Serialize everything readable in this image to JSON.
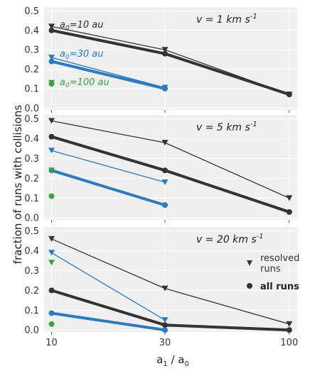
{
  "figure": {
    "ylabel": "fraction of runs with collisions",
    "xlabel_main": "a",
    "xlabel_sub1": "1",
    "xlabel_mid": " / a",
    "xlabel_sub2": "0",
    "legend": {
      "resolved_line1": "resolved",
      "resolved_line2": "runs",
      "all": "all runs"
    }
  },
  "colors": {
    "a10": "#333333",
    "a30": "#2b7bbf",
    "a100": "#3aa33a",
    "panel_bg": "#efefef",
    "grid": "#ffffff"
  },
  "chart_data": [
    {
      "type": "line",
      "title": "",
      "annotation": {
        "v_prefix": "v = ",
        "v_value": "1 km s",
        "v_exp": "-1"
      },
      "xlabel": "",
      "ylabel": "",
      "xscale": "log",
      "xlim": [
        9.3,
        108
      ],
      "ylim": [
        -0.01,
        0.52
      ],
      "yticks": [
        "0.0",
        "0.1",
        "0.2",
        "0.3",
        "0.4",
        "0.5"
      ],
      "ytick_values": [
        0.0,
        0.1,
        0.2,
        0.3,
        0.4,
        0.5
      ],
      "series_labels": [
        {
          "series": "a10",
          "prefix": "a",
          "sub": "0",
          "text": "=10 au"
        },
        {
          "series": "a30",
          "prefix": "a",
          "sub": "0",
          "text": "=30 au"
        },
        {
          "series": "a100",
          "prefix": "a",
          "sub": "0",
          "text": "=100 au"
        }
      ],
      "series": [
        {
          "key": "a10",
          "kind": "resolved",
          "x": [
            10,
            30,
            100
          ],
          "y": [
            0.42,
            0.3,
            0.07
          ]
        },
        {
          "key": "a10",
          "kind": "all",
          "x": [
            10,
            30,
            100
          ],
          "y": [
            0.4,
            0.28,
            0.07
          ]
        },
        {
          "key": "a30",
          "kind": "resolved",
          "x": [
            10,
            30
          ],
          "y": [
            0.26,
            0.105
          ]
        },
        {
          "key": "a30",
          "kind": "all",
          "x": [
            10,
            30
          ],
          "y": [
            0.24,
            0.1
          ]
        },
        {
          "key": "a100",
          "kind": "resolved",
          "x": [
            10
          ],
          "y": [
            0.13
          ]
        },
        {
          "key": "a100",
          "kind": "all",
          "x": [
            10
          ],
          "y": [
            0.125
          ]
        }
      ]
    },
    {
      "type": "line",
      "title": "",
      "annotation": {
        "v_prefix": "v = ",
        "v_value": "5 km s",
        "v_exp": "-1"
      },
      "xlabel": "",
      "ylabel": "",
      "xscale": "log",
      "xlim": [
        9.3,
        108
      ],
      "ylim": [
        -0.01,
        0.52
      ],
      "yticks": [
        "0.0",
        "0.1",
        "0.2",
        "0.3",
        "0.4",
        "0.5"
      ],
      "ytick_values": [
        0.0,
        0.1,
        0.2,
        0.3,
        0.4,
        0.5
      ],
      "series": [
        {
          "key": "a10",
          "kind": "resolved",
          "x": [
            10,
            30,
            100
          ],
          "y": [
            0.49,
            0.38,
            0.1
          ]
        },
        {
          "key": "a10",
          "kind": "all",
          "x": [
            10,
            30,
            100
          ],
          "y": [
            0.41,
            0.24,
            0.03
          ]
        },
        {
          "key": "a30",
          "kind": "resolved",
          "x": [
            10,
            30
          ],
          "y": [
            0.34,
            0.18
          ]
        },
        {
          "key": "a30",
          "kind": "all",
          "x": [
            10,
            30
          ],
          "y": [
            0.24,
            0.065
          ]
        },
        {
          "key": "a100",
          "kind": "resolved",
          "x": [
            10
          ],
          "y": [
            0.24
          ]
        },
        {
          "key": "a100",
          "kind": "all",
          "x": [
            10
          ],
          "y": [
            0.11
          ]
        }
      ]
    },
    {
      "type": "line",
      "title": "",
      "annotation": {
        "v_prefix": "v = ",
        "v_value": "20 km s",
        "v_exp": "-1"
      },
      "xlabel": "",
      "ylabel": "",
      "xscale": "log",
      "xlim": [
        9.3,
        108
      ],
      "ylim": [
        -0.01,
        0.52
      ],
      "yticks": [
        "0.0",
        "0.1",
        "0.2",
        "0.3",
        "0.4",
        "0.5"
      ],
      "ytick_values": [
        0.0,
        0.1,
        0.2,
        0.3,
        0.4,
        0.5
      ],
      "xticks": [
        "10",
        "30",
        "100"
      ],
      "xtick_values": [
        10,
        30,
        100
      ],
      "series": [
        {
          "key": "a10",
          "kind": "resolved",
          "x": [
            10,
            30,
            100
          ],
          "y": [
            0.46,
            0.21,
            0.03
          ]
        },
        {
          "key": "a10",
          "kind": "all",
          "x": [
            10,
            30,
            100
          ],
          "y": [
            0.2,
            0.025,
            0.0
          ]
        },
        {
          "key": "a30",
          "kind": "resolved",
          "x": [
            10,
            30
          ],
          "y": [
            0.39,
            0.05
          ]
        },
        {
          "key": "a30",
          "kind": "all",
          "x": [
            10,
            30
          ],
          "y": [
            0.085,
            0.0
          ]
        },
        {
          "key": "a100",
          "kind": "resolved",
          "x": [
            10
          ],
          "y": [
            0.34
          ]
        },
        {
          "key": "a100",
          "kind": "all",
          "x": [
            10
          ],
          "y": [
            0.03
          ]
        }
      ]
    }
  ]
}
